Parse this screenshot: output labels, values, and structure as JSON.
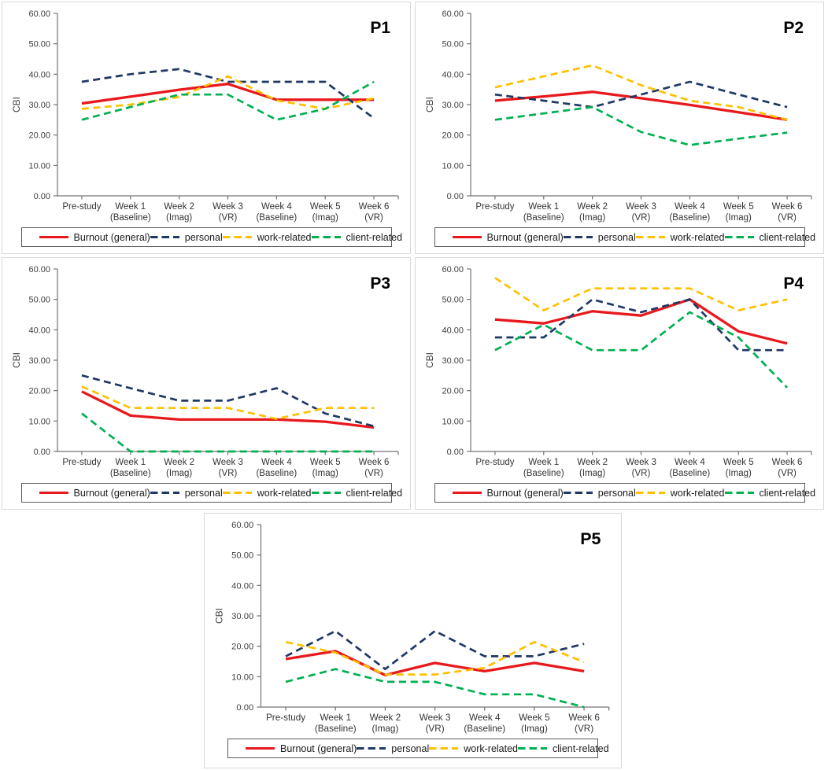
{
  "page": {
    "background": "#ffffff",
    "panel_border": "#d9d9d9"
  },
  "axis_style": {
    "line_color": "#737373",
    "tick_label_color": "#404040",
    "category_label_color": "#333333",
    "title_color": "#000000",
    "legend_border": "#595959",
    "legend_text_color": "#1a1a1a"
  },
  "chart_data": [
    {
      "type": "line",
      "title": "P1",
      "xlabel": "",
      "ylabel": "CBI",
      "ylim": [
        0,
        60
      ],
      "yticks": [
        "0.00",
        "10.00",
        "20.00",
        "30.00",
        "40.00",
        "50.00",
        "60.00"
      ],
      "grid": false,
      "legend_position": "bottom",
      "categories": [
        [
          "Pre-study",
          ""
        ],
        [
          "Week 1",
          "(Baseline)"
        ],
        [
          "Week 2",
          "(Imag)"
        ],
        [
          "Week 3",
          "(VR)"
        ],
        [
          "Week 4",
          "(Baseline)"
        ],
        [
          "Week 5",
          "(Imag)"
        ],
        [
          "Week 6",
          "(VR)"
        ]
      ],
      "series": [
        {
          "name": "Burnout (general)",
          "color": "#e8191d",
          "line_style": "solid",
          "values": [
            30.4,
            32.6,
            34.9,
            36.8,
            31.6,
            31.6,
            31.6
          ]
        },
        {
          "name": "personal",
          "color": "#1f3864",
          "line_style": "dashed",
          "values": [
            37.5,
            40.0,
            41.7,
            37.5,
            37.5,
            37.5,
            25.5
          ]
        },
        {
          "name": "work-related",
          "color": "#ffc000",
          "line_style": "dashed",
          "values": [
            28.6,
            30.0,
            32.5,
            39.3,
            31.4,
            28.6,
            32.1
          ]
        },
        {
          "name": "client-related",
          "color": "#00b050",
          "line_style": "dashed",
          "values": [
            25.0,
            29.2,
            33.3,
            33.3,
            25.0,
            28.6,
            37.5
          ]
        }
      ]
    },
    {
      "type": "line",
      "title": "P2",
      "xlabel": "",
      "ylabel": "CBI",
      "ylim": [
        0,
        60
      ],
      "yticks": [
        "0.00",
        "10.00",
        "20.00",
        "30.00",
        "40.00",
        "50.00",
        "60.00"
      ],
      "grid": false,
      "legend_position": "bottom",
      "categories": [
        [
          "Pre-study",
          ""
        ],
        [
          "Week 1",
          "(Baseline)"
        ],
        [
          "Week 2",
          "(Imag)"
        ],
        [
          "Week 3",
          "(VR)"
        ],
        [
          "Week 4",
          "(Baseline)"
        ],
        [
          "Week 5",
          "(Imag)"
        ],
        [
          "Week 6",
          "(VR)"
        ]
      ],
      "series": [
        {
          "name": "Burnout (general)",
          "color": "#e8191d",
          "line_style": "solid",
          "values": [
            31.3,
            32.7,
            34.2,
            32.1,
            29.9,
            27.5,
            25.0
          ]
        },
        {
          "name": "personal",
          "color": "#1f3864",
          "line_style": "dashed",
          "values": [
            33.3,
            31.3,
            29.2,
            33.3,
            37.5,
            33.3,
            29.2
          ]
        },
        {
          "name": "work-related",
          "color": "#ffc000",
          "line_style": "dashed",
          "values": [
            35.7,
            39.3,
            42.9,
            36.4,
            31.3,
            29.2,
            25.0
          ]
        },
        {
          "name": "client-related",
          "color": "#00b050",
          "line_style": "dashed",
          "values": [
            25.0,
            27.1,
            29.2,
            21.0,
            16.7,
            18.8,
            20.8
          ]
        }
      ]
    },
    {
      "type": "line",
      "title": "P3",
      "xlabel": "",
      "ylabel": "CBI",
      "ylim": [
        0,
        60
      ],
      "yticks": [
        "0.00",
        "10.00",
        "20.00",
        "30.00",
        "40.00",
        "50.00",
        "60.00"
      ],
      "grid": false,
      "legend_position": "bottom",
      "categories": [
        [
          "Pre-study",
          ""
        ],
        [
          "Week 1",
          "(Baseline)"
        ],
        [
          "Week 2",
          "(Imag)"
        ],
        [
          "Week 3",
          "(VR)"
        ],
        [
          "Week 4",
          "(Baseline)"
        ],
        [
          "Week 5",
          "(Imag)"
        ],
        [
          "Week 6",
          "(VR)"
        ]
      ],
      "series": [
        {
          "name": "Burnout (general)",
          "color": "#e8191d",
          "line_style": "solid",
          "values": [
            19.7,
            11.8,
            10.5,
            10.5,
            10.5,
            9.8,
            7.9
          ]
        },
        {
          "name": "personal",
          "color": "#1f3864",
          "line_style": "dashed",
          "values": [
            25.0,
            20.8,
            16.7,
            16.7,
            20.8,
            12.5,
            8.3
          ]
        },
        {
          "name": "work-related",
          "color": "#ffc000",
          "line_style": "dashed",
          "values": [
            21.4,
            14.3,
            14.3,
            14.3,
            10.7,
            14.3,
            14.3
          ]
        },
        {
          "name": "client-related",
          "color": "#00b050",
          "line_style": "dashed",
          "values": [
            12.5,
            0.0,
            0.0,
            0.0,
            0.0,
            0.0,
            0.0
          ]
        }
      ]
    },
    {
      "type": "line",
      "title": "P4",
      "xlabel": "",
      "ylabel": "CBI",
      "ylim": [
        0,
        60
      ],
      "yticks": [
        "0.00",
        "10.00",
        "20.00",
        "30.00",
        "40.00",
        "50.00",
        "60.00"
      ],
      "grid": false,
      "legend_position": "bottom",
      "categories": [
        [
          "Pre-study",
          ""
        ],
        [
          "Week 1",
          "(Baseline)"
        ],
        [
          "Week 2",
          "(Imag)"
        ],
        [
          "Week 3",
          "(VR)"
        ],
        [
          "Week 4",
          "(Baseline)"
        ],
        [
          "Week 5",
          "(Imag)"
        ],
        [
          "Week 6",
          "(VR)"
        ]
      ],
      "series": [
        {
          "name": "Burnout (general)",
          "color": "#e8191d",
          "line_style": "solid",
          "values": [
            43.4,
            42.1,
            46.1,
            44.7,
            50.0,
            39.5,
            35.5
          ]
        },
        {
          "name": "personal",
          "color": "#1f3864",
          "line_style": "dashed",
          "values": [
            37.5,
            37.5,
            50.0,
            45.8,
            50.0,
            33.3,
            33.3
          ]
        },
        {
          "name": "work-related",
          "color": "#ffc000",
          "line_style": "dashed",
          "values": [
            57.1,
            46.4,
            53.6,
            53.6,
            53.6,
            46.4,
            50.0
          ]
        },
        {
          "name": "client-related",
          "color": "#00b050",
          "line_style": "dashed",
          "values": [
            33.3,
            41.7,
            33.3,
            33.3,
            45.8,
            37.5,
            21.0
          ]
        }
      ]
    },
    {
      "type": "line",
      "title": "P5",
      "xlabel": "",
      "ylabel": "CBI",
      "ylim": [
        0,
        60
      ],
      "yticks": [
        "0.00",
        "10.00",
        "20.00",
        "30.00",
        "40.00",
        "50.00",
        "60.00"
      ],
      "grid": false,
      "legend_position": "bottom",
      "categories": [
        [
          "Pre-study",
          ""
        ],
        [
          "Week 1",
          "(Baseline)"
        ],
        [
          "Week 2",
          "(Imag)"
        ],
        [
          "Week 3",
          "(VR)"
        ],
        [
          "Week 4",
          "(Baseline)"
        ],
        [
          "Week 5",
          "(Imag)"
        ],
        [
          "Week 6",
          "(VR)"
        ]
      ],
      "series": [
        {
          "name": "Burnout (general)",
          "color": "#e8191d",
          "line_style": "solid",
          "values": [
            15.8,
            18.4,
            10.5,
            14.5,
            11.8,
            14.5,
            11.8
          ]
        },
        {
          "name": "personal",
          "color": "#1f3864",
          "line_style": "dashed",
          "values": [
            16.7,
            25.0,
            12.5,
            25.0,
            16.7,
            16.7,
            20.8
          ]
        },
        {
          "name": "work-related",
          "color": "#ffc000",
          "line_style": "dashed",
          "values": [
            21.4,
            17.9,
            10.7,
            10.7,
            12.9,
            21.4,
            14.8
          ]
        },
        {
          "name": "client-related",
          "color": "#00b050",
          "line_style": "dashed",
          "values": [
            8.3,
            12.5,
            8.3,
            8.3,
            4.2,
            4.2,
            0.0
          ]
        }
      ]
    }
  ]
}
